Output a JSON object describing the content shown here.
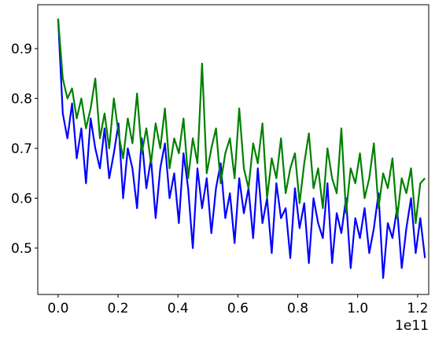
{
  "chart_data": {
    "type": "line",
    "x_offset_text": "1e11",
    "x": [
      0,
      0.0155,
      0.031,
      0.0465,
      0.062,
      0.0775,
      0.093,
      0.1085,
      0.124,
      0.1395,
      0.155,
      0.1705,
      0.186,
      0.2015,
      0.217,
      0.2325,
      0.248,
      0.2635,
      0.279,
      0.2945,
      0.31,
      0.3255,
      0.341,
      0.3565,
      0.372,
      0.3875,
      0.403,
      0.4185,
      0.434,
      0.4495,
      0.465,
      0.4805,
      0.496,
      0.5115,
      0.527,
      0.5425,
      0.558,
      0.5735,
      0.589,
      0.6045,
      0.62,
      0.6355,
      0.651,
      0.6665,
      0.682,
      0.6975,
      0.713,
      0.7285,
      0.744,
      0.7595,
      0.775,
      0.7905,
      0.806,
      0.8215,
      0.837,
      0.8525,
      0.868,
      0.8835,
      0.899,
      0.9145,
      0.93,
      0.9455,
      0.961,
      0.9765,
      0.992,
      1.0075,
      1.023,
      1.0385,
      1.054,
      1.0695,
      1.085,
      1.1005,
      1.116,
      1.1315,
      1.147,
      1.1625,
      1.178,
      1.1935,
      1.209,
      1.2245
    ],
    "series": [
      {
        "color": "#0000ff",
        "values": [
          0.96,
          0.77,
          0.72,
          0.79,
          0.68,
          0.74,
          0.63,
          0.76,
          0.7,
          0.66,
          0.74,
          0.64,
          0.69,
          0.75,
          0.6,
          0.7,
          0.66,
          0.58,
          0.72,
          0.62,
          0.68,
          0.56,
          0.66,
          0.71,
          0.6,
          0.65,
          0.55,
          0.69,
          0.62,
          0.5,
          0.66,
          0.58,
          0.64,
          0.53,
          0.62,
          0.67,
          0.56,
          0.61,
          0.51,
          0.64,
          0.57,
          0.62,
          0.52,
          0.66,
          0.55,
          0.6,
          0.49,
          0.63,
          0.56,
          0.58,
          0.48,
          0.62,
          0.54,
          0.59,
          0.47,
          0.6,
          0.55,
          0.52,
          0.63,
          0.47,
          0.57,
          0.53,
          0.6,
          0.46,
          0.56,
          0.52,
          0.58,
          0.49,
          0.54,
          0.61,
          0.44,
          0.55,
          0.52,
          0.58,
          0.46,
          0.54,
          0.6,
          0.49,
          0.56,
          0.48
        ]
      },
      {
        "color": "#008000",
        "values": [
          0.96,
          0.84,
          0.8,
          0.82,
          0.76,
          0.8,
          0.74,
          0.78,
          0.84,
          0.72,
          0.77,
          0.7,
          0.8,
          0.73,
          0.68,
          0.76,
          0.71,
          0.81,
          0.69,
          0.74,
          0.67,
          0.75,
          0.7,
          0.78,
          0.66,
          0.72,
          0.69,
          0.76,
          0.64,
          0.72,
          0.67,
          0.87,
          0.65,
          0.7,
          0.74,
          0.63,
          0.69,
          0.72,
          0.64,
          0.78,
          0.66,
          0.62,
          0.71,
          0.67,
          0.75,
          0.6,
          0.68,
          0.64,
          0.72,
          0.61,
          0.66,
          0.69,
          0.59,
          0.67,
          0.73,
          0.62,
          0.66,
          0.58,
          0.7,
          0.64,
          0.61,
          0.74,
          0.57,
          0.66,
          0.63,
          0.69,
          0.6,
          0.64,
          0.71,
          0.58,
          0.65,
          0.62,
          0.68,
          0.56,
          0.64,
          0.61,
          0.66,
          0.55,
          0.63,
          0.64
        ]
      }
    ],
    "xlim": [
      -0.068,
      1.237
    ],
    "ylim": [
      0.407,
      0.988
    ],
    "xticks": [
      {
        "value": 0,
        "label": "0.0"
      },
      0.2,
      0.4,
      0.6,
      0.8,
      {
        "value": 1,
        "label": "1.0"
      },
      1.2
    ],
    "yticks": [
      0.5,
      0.6,
      0.7,
      0.8,
      0.9
    ],
    "grid": false
  }
}
